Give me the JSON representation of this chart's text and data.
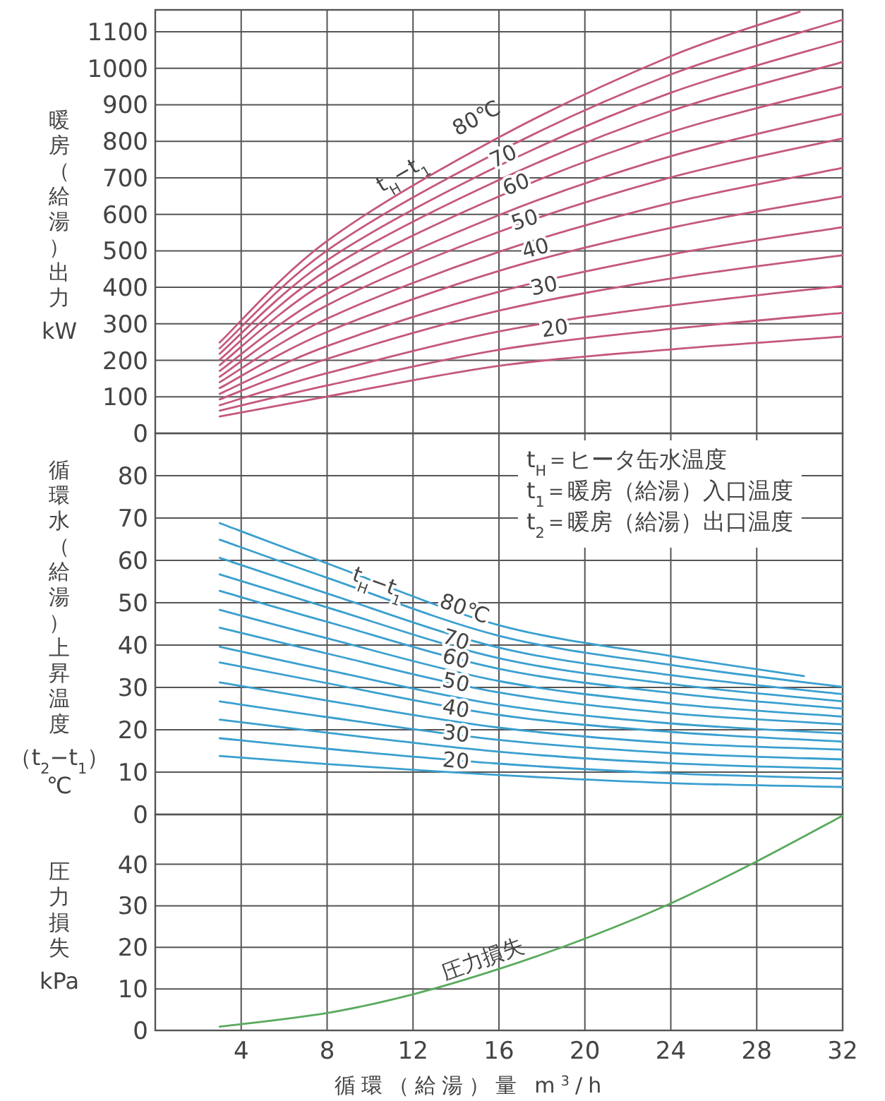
{
  "chart_data": [
    {
      "type": "line",
      "ylabel": "暖房（給湯）出力 kW",
      "xlim": [
        0,
        32
      ],
      "xticks": [
        4,
        8,
        12,
        16,
        20,
        24,
        28,
        32
      ],
      "ylim": [
        0,
        1160
      ],
      "yticks": [
        0,
        100,
        200,
        300,
        400,
        500,
        600,
        700,
        800,
        900,
        1000,
        1100
      ],
      "grid": true,
      "tick_labels": "y",
      "x": [
        3,
        8,
        16,
        24,
        32
      ],
      "series": [
        {
          "color": "#c4587a",
          "x": [
            3,
            8,
            16,
            24,
            30
          ],
          "values": [
            249,
            527,
            811,
            1033,
            1155
          ]
        },
        {
          "color": "#c4587a",
          "values": [
            233,
            501,
            772,
            983,
            1133
          ]
        },
        {
          "color": "#c4587a",
          "values": [
            218,
            474,
            733,
            933,
            1075
          ]
        },
        {
          "color": "#c4587a",
          "values": [
            202,
            447,
            694,
            883,
            1017
          ]
        },
        {
          "color": "#c4587a",
          "values": [
            187,
            417,
            649,
            825,
            950
          ]
        },
        {
          "color": "#c4587a",
          "values": [
            171,
            382,
            598,
            759,
            875
          ]
        },
        {
          "color": "#c4587a",
          "values": [
            155,
            351,
            552,
            701,
            808
          ]
        },
        {
          "color": "#c4587a",
          "values": [
            140,
            314,
            497,
            631,
            727
          ]
        },
        {
          "color": "#c4587a",
          "values": [
            124,
            278,
            445,
            563,
            649
          ]
        },
        {
          "color": "#c4587a",
          "values": [
            108,
            239,
            388,
            490,
            565
          ]
        },
        {
          "color": "#c4587a",
          "values": [
            93,
            204,
            336,
            424,
            488
          ]
        },
        {
          "color": "#c4587a",
          "values": [
            77,
            165,
            279,
            350,
            404
          ]
        },
        {
          "color": "#c4587a",
          "values": [
            62,
            131,
            229,
            286,
            330
          ]
        },
        {
          "color": "#c4587a",
          "values": [
            46,
            101,
            185,
            230,
            265
          ]
        }
      ],
      "annotations": [
        "t$_{H}$−t$_{1}$",
        "80℃",
        {
          "text": "70",
          "x": 16.2,
          "y": 759
        },
        {
          "text": "60",
          "x": 16.8,
          "y": 682
        },
        {
          "text": "50",
          "x": 17.2,
          "y": 585
        },
        {
          "text": "40",
          "x": 17.7,
          "y": 507
        },
        {
          "text": "30",
          "x": 18.1,
          "y": 404
        },
        {
          "text": "20",
          "x": 18.6,
          "y": 288
        }
      ]
    },
    {
      "type": "line",
      "ylabel": "循環水（給湯）上昇温度（t$_{2}$−t$_{1}$）℃",
      "xlim": [
        0,
        32
      ],
      "xticks": [
        4,
        8,
        12,
        16,
        20,
        24,
        28,
        32
      ],
      "ylim": [
        0,
        90
      ],
      "yticks": [
        0,
        10,
        20,
        30,
        40,
        50,
        60,
        70,
        80
      ],
      "grid": true,
      "tick_labels": "y",
      "x": [
        3,
        8,
        16,
        24,
        32
      ],
      "series": [
        {
          "color": "#3a9fcf",
          "x": [
            3,
            8,
            16,
            24,
            30.2
          ],
          "values": [
            68.8,
            59.3,
            44.7,
            37.4,
            32.7
          ]
        },
        {
          "color": "#3a9fcf",
          "values": [
            64.9,
            55.9,
            42.2,
            35.3,
            30.1
          ]
        },
        {
          "color": "#3a9fcf",
          "values": [
            60.6,
            52.2,
            39.4,
            32.9,
            28.4
          ]
        },
        {
          "color": "#3a9fcf",
          "values": [
            56.7,
            48.9,
            36.9,
            30.8,
            26.7
          ]
        },
        {
          "color": "#3a9fcf",
          "values": [
            52.8,
            45.5,
            34.4,
            28.7,
            25.0
          ]
        },
        {
          "color": "#3a9fcf",
          "values": [
            48.3,
            41.6,
            31.5,
            26.2,
            23.1
          ]
        },
        {
          "color": "#3a9fcf",
          "values": [
            44.1,
            38.0,
            28.8,
            23.9,
            21.3
          ]
        },
        {
          "color": "#3a9fcf",
          "values": [
            39.6,
            34.1,
            25.9,
            21.5,
            19.1
          ]
        },
        {
          "color": "#3a9fcf",
          "values": [
            35.9,
            31.0,
            23.5,
            19.5,
            17.2
          ]
        },
        {
          "color": "#3a9fcf",
          "values": [
            31.2,
            26.9,
            20.5,
            16.9,
            15.3
          ]
        },
        {
          "color": "#3a9fcf",
          "values": [
            26.7,
            23.0,
            17.6,
            14.5,
            13.0
          ]
        },
        {
          "color": "#3a9fcf",
          "values": [
            22.4,
            19.3,
            14.8,
            12.1,
            10.8
          ]
        },
        {
          "color": "#3a9fcf",
          "values": [
            18.0,
            15.5,
            12.0,
            9.7,
            8.5
          ]
        },
        {
          "color": "#3a9fcf",
          "values": [
            13.8,
            11.9,
            9.3,
            7.4,
            6.5
          ]
        }
      ],
      "annotations": [
        "t$_{H}$＝ヒータ缶水温度",
        "t$_{1}$＝暖房（給湯）入口温度",
        "t$_{2}$＝暖房（給湯）出口温度",
        {
          "text": "t$_{H}$−t$_{1}$",
          "x": 10.4,
          "y": 54.8
        },
        {
          "text": "80℃",
          "x": 14.4,
          "y": 48.6
        },
        {
          "text": "70",
          "x": 14.0,
          "y": 41.3
        },
        {
          "text": "60",
          "x": 14.0,
          "y": 36.8
        },
        {
          "text": "50",
          "x": 14.0,
          "y": 31.2
        },
        {
          "text": "40",
          "x": 14.0,
          "y": 25.0
        },
        {
          "text": "30",
          "x": 14.0,
          "y": 19.1
        },
        {
          "text": "20",
          "x": 14.0,
          "y": 12.7
        }
      ]
    },
    {
      "type": "line",
      "ylabel": "圧力損失 kPa",
      "xlabel": "循環（給湯）量 m$^{3}$/h",
      "xlim": [
        0,
        32
      ],
      "xticks": [
        4,
        8,
        12,
        16,
        20,
        24,
        28,
        32
      ],
      "ylim": [
        0,
        52
      ],
      "yticks": [
        0,
        10,
        20,
        30,
        40
      ],
      "grid": true,
      "series": [
        {
          "color": "#5aaa5e",
          "x": [
            3,
            8,
            12,
            16,
            20,
            24,
            28,
            32
          ],
          "values": [
            0.9,
            4.2,
            8.7,
            14.8,
            22.1,
            30.6,
            40.7,
            51.7
          ]
        }
      ],
      "annotations": [
        "圧力損失"
      ]
    }
  ]
}
